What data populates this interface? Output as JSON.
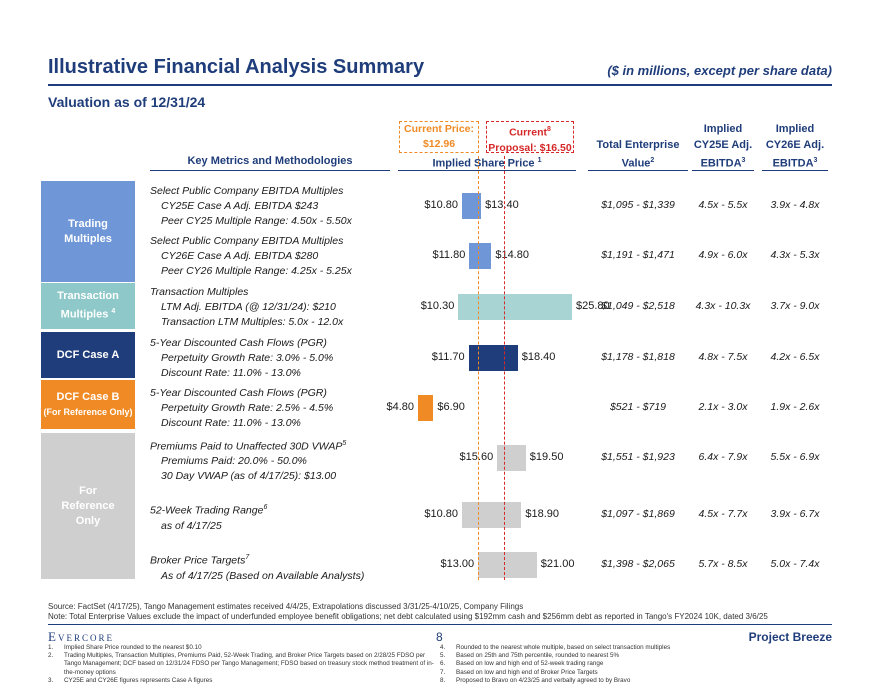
{
  "header": {
    "title": "Illustrative Financial Analysis Summary",
    "subtitle": "($ in millions, except per share data)",
    "valuation_date": "Valuation as of 12/31/24"
  },
  "callouts": {
    "current_price_line1": "Current Price:",
    "current_price_line2": "$12.96",
    "proposal_line1": "Current",
    "proposal_sup": "8",
    "proposal_line2": "Proposal: $16.50",
    "current_price_value": 12.96,
    "proposal_value": 16.5
  },
  "columns": {
    "metrics": "Key Metrics and Methodologies",
    "implied_price": "Implied Share Price",
    "implied_price_sup": "1",
    "tev_line1": "Total Enterprise",
    "tev_line2": "Value",
    "tev_sup": "2",
    "cy25_line1": "Implied",
    "cy25_line2": "CY25E Adj.",
    "cy25_line3": "EBITDA",
    "cy25_sup": "3",
    "cy26_line1": "Implied",
    "cy26_line2": "CY26E Adj.",
    "cy26_line3": "EBITDA",
    "cy26_sup": "3"
  },
  "categories": [
    {
      "line1": "Trading",
      "line2": "Multiples",
      "sup": "",
      "color": "#6f97d8"
    },
    {
      "line1": "Transaction",
      "line2": "Multiples",
      "sup": "4",
      "color": "#8ec8c8"
    },
    {
      "line1": "DCF Case A",
      "line2": "",
      "sup": "",
      "color": "#1f3d7a"
    },
    {
      "line1": "DCF Case B",
      "line2": "(For Reference Only)",
      "sup": "",
      "color": "#f08a24"
    },
    {
      "line1": "For",
      "line2": "Reference",
      "line3": "Only",
      "sup": "",
      "color": "#cfcfcf"
    }
  ],
  "rows": [
    {
      "lines": [
        "Select Public Company EBITDA Multiples",
        "CY25E Case A Adj. EBITDA $243",
        "Peer CY25 Multiple Range: 4.50x - 5.50x"
      ],
      "sup": "",
      "low": 10.8,
      "high": 13.4,
      "low_label": "$10.80",
      "high_label": "$13.40",
      "tev": "$1,095 - $1,339",
      "cy25": "4.5x - 5.5x",
      "cy26": "3.9x - 4.8x",
      "color": "#6f97d8"
    },
    {
      "lines": [
        "Select Public Company EBITDA Multiples",
        "CY26E Case A Adj. EBITDA $280",
        "Peer CY26 Multiple Range: 4.25x - 5.25x"
      ],
      "sup": "",
      "low": 11.8,
      "high": 14.8,
      "low_label": "$11.80",
      "high_label": "$14.80",
      "tev": "$1,191 - $1,471",
      "cy25": "4.9x - 6.0x",
      "cy26": "4.3x - 5.3x",
      "color": "#6f97d8"
    },
    {
      "lines": [
        "Transaction Multiples",
        "LTM Adj. EBITDA (@ 12/31/24): $210",
        "Transaction LTM Multiples: 5.0x - 12.0x"
      ],
      "sup": "",
      "low": 10.3,
      "high": 25.8,
      "low_label": "$10.30",
      "high_label": "$25.80",
      "tev": "$1,049 - $2,518",
      "cy25": "4.3x - 10.3x",
      "cy26": "3.7x - 9.0x",
      "color": "#a8d4d4"
    },
    {
      "lines": [
        "5-Year Discounted Cash Flows (PGR)",
        "Perpetuity Growth Rate: 3.0% - 5.0%",
        "Discount Rate: 11.0% - 13.0%"
      ],
      "sup": "",
      "low": 11.7,
      "high": 18.4,
      "low_label": "$11.70",
      "high_label": "$18.40",
      "tev": "$1,178 - $1,818",
      "cy25": "4.8x - 7.5x",
      "cy26": "4.2x - 6.5x",
      "color": "#1f3d7a"
    },
    {
      "lines": [
        "5-Year Discounted Cash Flows (PGR)",
        "Perpetuity Growth Rate: 2.5% - 4.5%",
        "Discount Rate: 11.0% - 13.0%"
      ],
      "sup": "",
      "low": 4.8,
      "high": 6.9,
      "low_label": "$4.80",
      "high_label": "$6.90",
      "tev": "$521 - $719",
      "cy25": "2.1x - 3.0x",
      "cy26": "1.9x - 2.6x",
      "color": "#f08a24"
    },
    {
      "lines": [
        "Premiums Paid to Unaffected 30D VWAP",
        "Premiums Paid: 20.0% - 50.0%",
        "30 Day VWAP (as of 4/17/25): $13.00"
      ],
      "sup": "5",
      "low": 15.6,
      "high": 19.5,
      "low_label": "$15.60",
      "high_label": "$19.50",
      "tev": "$1,551 - $1,923",
      "cy25": "6.4x - 7.9x",
      "cy26": "5.5x - 6.9x",
      "color": "#cfcfcf"
    },
    {
      "lines": [
        "52-Week Trading Range",
        "as of 4/17/25"
      ],
      "sup": "6",
      "low": 10.8,
      "high": 18.9,
      "low_label": "$10.80",
      "high_label": "$18.90",
      "tev": "$1,097 - $1,869",
      "cy25": "4.5x - 7.7x",
      "cy26": "3.9x - 6.7x",
      "color": "#cfcfcf"
    },
    {
      "lines": [
        "Broker Price Targets",
        "As of 4/17/25 (Based on Available Analysts)"
      ],
      "sup": "7",
      "low": 13.0,
      "high": 21.0,
      "low_label": "$13.00",
      "high_label": "$21.00",
      "tev": "$1,398 - $2,065",
      "cy25": "5.7x - 8.5x",
      "cy26": "5.0x - 7.4x",
      "color": "#cfcfcf"
    }
  ],
  "footer": {
    "source": "Source: FactSet (4/17/25), Tango Management estimates received 4/4/25, Extrapolations discussed 3/31/25-4/10/25, Company Filings",
    "note": "Note: Total Enterprise Values exclude the impact of underfunded employee benefit obligations; net debt calculated using $192mm cash and $256mm debt as reported in Tango's FY2024 10K, dated 3/6/25",
    "logo": "Evercore",
    "page_number": "8",
    "project": "Project Breeze",
    "footnotes_left": [
      {
        "n": "1.",
        "t": "Implied Share Price rounded to the nearest $0.10"
      },
      {
        "n": "2.",
        "t": "Trading Multiples, Transaction Multiples, Premiums Paid, 52-Week Trading, and Broker Price Targets based on 2/28/25 FDSO per Tango Management; DCF based on 12/31/24 FDSO per Tango Management; FDSO based on treasury stock method treatment of in-the-money options"
      },
      {
        "n": "3.",
        "t": "CY25E and CY26E figures represents Case A figures"
      }
    ],
    "footnotes_right": [
      {
        "n": "4.",
        "t": "Rounded to the nearest whole multiple, based on select transaction multiples"
      },
      {
        "n": "5.",
        "t": "Based on 25th and 75th percentile, rounded to nearest 5%"
      },
      {
        "n": "6.",
        "t": "Based on low and high end of 52-week trading range"
      },
      {
        "n": "7.",
        "t": "Based on low and high end of Broker Price Targets"
      },
      {
        "n": "8.",
        "t": "Proposed to Bravo on 4/23/25 and verbally agreed to by Bravo"
      }
    ]
  }
}
